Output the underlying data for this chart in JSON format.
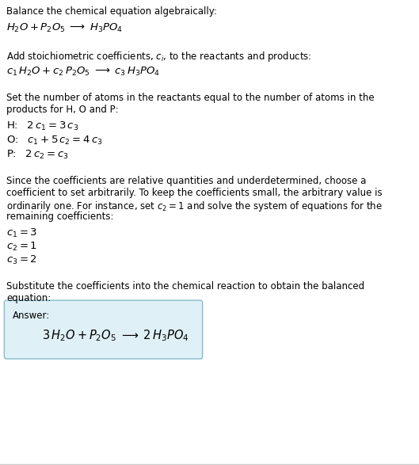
{
  "bg_color": "#ffffff",
  "text_color": "#000000",
  "line_color": "#cccccc",
  "box_color": "#dff0f7",
  "box_border_color": "#88bbcc",
  "section1_title": "Balance the chemical equation algebraically:",
  "section1_eq": "$H_2O + P_2O_5 \\;\\longrightarrow\\; H_3PO_4$",
  "section2_title": "Add stoichiometric coefficients, $c_i$, to the reactants and products:",
  "section2_eq": "$c_1\\, H_2O + c_2\\, P_2O_5 \\;\\longrightarrow\\; c_3\\, H_3PO_4$",
  "section3_title": "Set the number of atoms in the reactants equal to the number of atoms in the",
  "section3_title2": "products for H, O and P:",
  "section3_H": "H: $\\;\\; 2\\,c_1 = 3\\,c_3$",
  "section3_O": "O: $\\;\\; c_1 + 5\\,c_2 = 4\\,c_3$",
  "section3_P": "P: $\\;\\; 2\\,c_2 = c_3$",
  "section4_intro1": "Since the coefficients are relative quantities and underdetermined, choose a",
  "section4_intro2": "coefficient to set arbitrarily. To keep the coefficients small, the arbitrary value is",
  "section4_intro3": "ordinarily one. For instance, set $c_2 = 1$ and solve the system of equations for the",
  "section4_intro4": "remaining coefficients:",
  "section4_c1": "$c_1 = 3$",
  "section4_c2": "$c_2 = 1$",
  "section4_c3": "$c_3 = 2$",
  "section5_title1": "Substitute the coefficients into the chemical reaction to obtain the balanced",
  "section5_title2": "equation:",
  "answer_label": "Answer:",
  "answer_eq": "$3\\, H_2O + P_2O_5 \\;\\longrightarrow\\; 2\\, H_3PO_4$",
  "figsize": [
    5.29,
    5.87
  ],
  "dpi": 100
}
